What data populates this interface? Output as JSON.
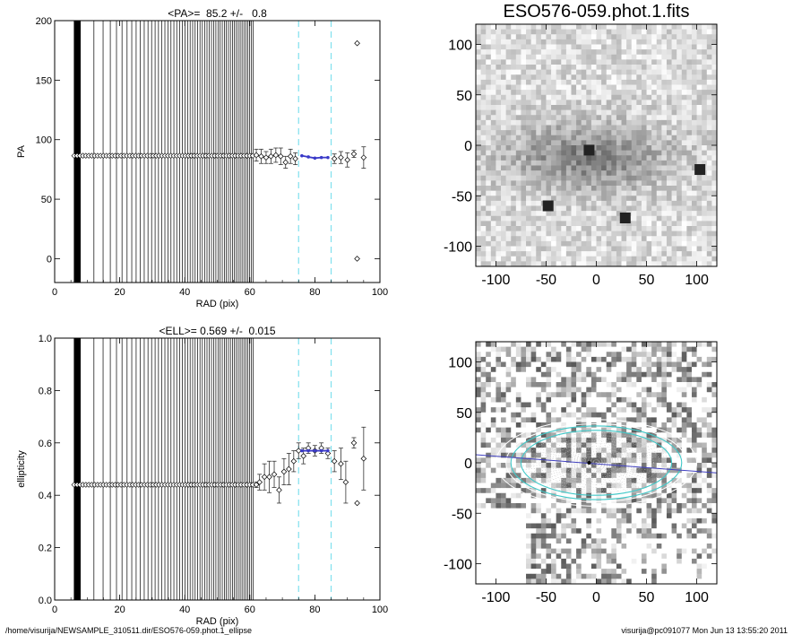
{
  "chart_data": [
    {
      "type": "scatter",
      "title": "<PA>=  85.2 +/-   0.8",
      "xlabel": "RAD (pix)",
      "ylabel": "PA",
      "xlim": [
        0,
        100
      ],
      "ylim": [
        -20,
        200
      ],
      "xticks": [
        0,
        20,
        40,
        60,
        80,
        100
      ],
      "yticks": [
        0,
        50,
        100,
        150,
        200
      ],
      "vertical_lines_x_start": 6,
      "vertical_lines_x_end": 61,
      "dense_series": {
        "x_start": 6,
        "x_end": 61,
        "y": 86.5
      },
      "dashed_lines_x": [
        75,
        85
      ],
      "fit_points": {
        "x": [
          76,
          78,
          80,
          82,
          84
        ],
        "y": [
          86.5,
          85.5,
          84.5,
          85.0,
          85.0
        ]
      },
      "points": [
        {
          "x": 62,
          "y": 87,
          "err": 5
        },
        {
          "x": 63.5,
          "y": 86,
          "err": 6
        },
        {
          "x": 65,
          "y": 85,
          "err": 5
        },
        {
          "x": 66.5,
          "y": 86,
          "err": 6
        },
        {
          "x": 68,
          "y": 87,
          "err": 6
        },
        {
          "x": 69.5,
          "y": 86,
          "err": 7
        },
        {
          "x": 71,
          "y": 81,
          "err": 5
        },
        {
          "x": 72.5,
          "y": 86,
          "err": 6
        },
        {
          "x": 74,
          "y": 84,
          "err": 5
        },
        {
          "x": 86,
          "y": 84,
          "err": 4
        },
        {
          "x": 88,
          "y": 85,
          "err": 5
        },
        {
          "x": 90,
          "y": 83,
          "err": 6
        },
        {
          "x": 92,
          "y": 88,
          "err": 3
        },
        {
          "x": 93,
          "y": 181,
          "err": 0
        },
        {
          "x": 93,
          "y": 0,
          "err": 0
        },
        {
          "x": 95,
          "y": 85,
          "err": 9
        }
      ]
    },
    {
      "type": "scatter",
      "title": "<ELL>= 0.569 +/-  0.015",
      "xlabel": "RAD (pix)",
      "ylabel": "ellipticity",
      "xlim": [
        0,
        100
      ],
      "ylim": [
        0,
        1
      ],
      "xticks": [
        0,
        20,
        40,
        60,
        80,
        100
      ],
      "yticks": [
        0.0,
        0.2,
        0.4,
        0.6,
        0.8,
        1.0
      ],
      "vertical_lines_x_start": 6,
      "vertical_lines_x_end": 61,
      "dense_series": {
        "x_start": 6,
        "x_end": 61,
        "y": 0.44
      },
      "dashed_lines_x": [
        75,
        85
      ],
      "fit_points": {
        "x": [
          76,
          78,
          80,
          82,
          84
        ],
        "y": [
          0.57,
          0.57,
          0.57,
          0.57,
          0.57
        ]
      },
      "points": [
        {
          "x": 62,
          "y": 0.44,
          "err": 0.01
        },
        {
          "x": 63,
          "y": 0.45,
          "err": 0.03
        },
        {
          "x": 64.5,
          "y": 0.47,
          "err": 0.05
        },
        {
          "x": 66,
          "y": 0.47,
          "err": 0.06
        },
        {
          "x": 67.5,
          "y": 0.48,
          "err": 0.05
        },
        {
          "x": 69,
          "y": 0.42,
          "err": 0.05
        },
        {
          "x": 70.5,
          "y": 0.49,
          "err": 0.05
        },
        {
          "x": 72,
          "y": 0.5,
          "err": 0.06
        },
        {
          "x": 73.5,
          "y": 0.53,
          "err": 0.04
        },
        {
          "x": 75,
          "y": 0.57,
          "err": 0.03
        },
        {
          "x": 76.5,
          "y": 0.55,
          "err": 0.03
        },
        {
          "x": 78,
          "y": 0.58,
          "err": 0.02
        },
        {
          "x": 80,
          "y": 0.57,
          "err": 0.02
        },
        {
          "x": 82,
          "y": 0.58,
          "err": 0.02
        },
        {
          "x": 84,
          "y": 0.56,
          "err": 0.02
        },
        {
          "x": 86,
          "y": 0.53,
          "err": 0.04
        },
        {
          "x": 88,
          "y": 0.52,
          "err": 0.06
        },
        {
          "x": 89.5,
          "y": 0.45,
          "err": 0.08
        },
        {
          "x": 92,
          "y": 0.6,
          "err": 0.02
        },
        {
          "x": 93,
          "y": 0.37,
          "err": 0
        },
        {
          "x": 95,
          "y": 0.54,
          "err": 0.12
        }
      ]
    },
    {
      "type": "heatmap",
      "title": "ESO576-059.phot.1.fits",
      "xlim": [
        -120,
        120
      ],
      "ylim": [
        -120,
        120
      ],
      "xticks": [
        -100,
        -50,
        0,
        50,
        100
      ],
      "yticks": [
        -100,
        -50,
        0,
        50,
        100
      ]
    },
    {
      "type": "heatmap",
      "title": "",
      "xlim": [
        -120,
        120
      ],
      "ylim": [
        -120,
        120
      ],
      "xticks": [
        -100,
        -50,
        0,
        50,
        100
      ],
      "yticks": [
        -100,
        -50,
        0,
        50,
        100
      ],
      "ellipse_pa_deg": 85.2,
      "ellipse_ellipticity": 0.569,
      "ellipse_radii": [
        75,
        85
      ]
    }
  ],
  "footer": {
    "left": "/home/visurija/NEWSAMPLE_310511.dir/ESO576-059.phot.1_ellipse",
    "right": "visurija@pc091077  Mon Jun 13 13:55:20 2011"
  },
  "colors": {
    "fit": "#3a3ac8",
    "dashed": "#7fe0ee",
    "axis": "#000000",
    "ellipse_cyan": "#40c8c8",
    "pa_line": "#4040c0"
  }
}
